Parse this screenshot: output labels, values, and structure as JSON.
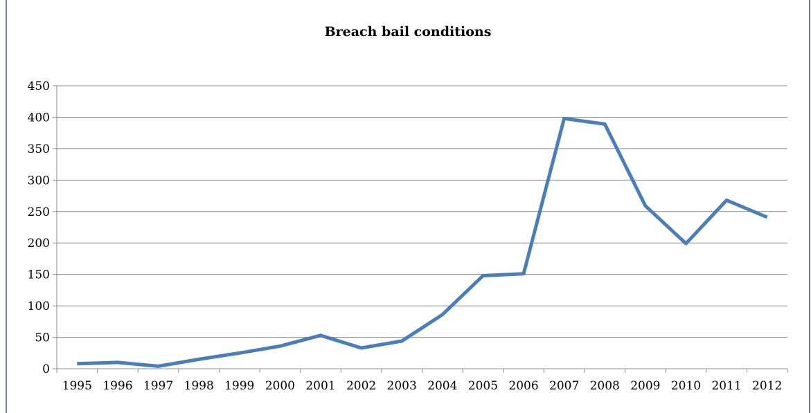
{
  "chart_data": {
    "type": "line",
    "title": "Breach bail conditions",
    "xlabel": "",
    "ylabel": "",
    "categories": [
      "1995",
      "1996",
      "1997",
      "1998",
      "1999",
      "2000",
      "2001",
      "2002",
      "2003",
      "2004",
      "2005",
      "2006",
      "2007",
      "2008",
      "2009",
      "2010",
      "2011",
      "2012"
    ],
    "series": [
      {
        "values": [
          8,
          10,
          4,
          15,
          25,
          36,
          53,
          33,
          44,
          86,
          148,
          151,
          398,
          389,
          259,
          199,
          268,
          241
        ],
        "color": "#4a7ebb"
      }
    ],
    "ylim": [
      0,
      450
    ],
    "yticks": [
      0,
      50,
      100,
      150,
      200,
      250,
      300,
      350,
      400,
      450
    ],
    "grid": true,
    "legend": "none"
  }
}
